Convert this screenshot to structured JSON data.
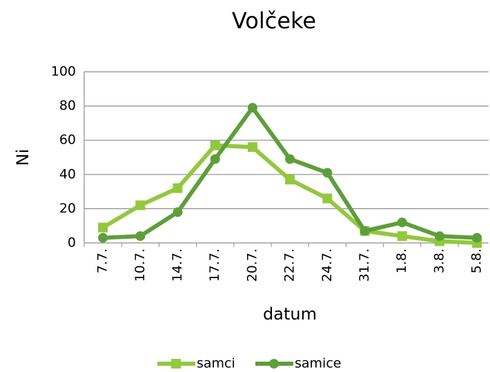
{
  "chart_data": {
    "type": "line",
    "title": "Volčeke",
    "x_label": "datum",
    "y_label": "Ni",
    "categories": [
      "7.7.",
      "10.7.",
      "14.7.",
      "17.7.",
      "20.7.",
      "22.7.",
      "24.7.",
      "31.7.",
      "1.8.",
      "3.8.",
      "5.8."
    ],
    "series": [
      {
        "name": "samci",
        "color": "#92c83e",
        "marker": "square",
        "values": [
          9,
          22,
          32,
          57,
          56,
          37,
          26,
          7,
          4,
          1,
          0
        ]
      },
      {
        "name": "samice",
        "color": "#5e9e3a",
        "marker": "circle",
        "values": [
          3,
          4,
          18,
          49,
          79,
          49,
          41,
          7,
          12,
          4,
          3
        ]
      }
    ],
    "ylim": [
      0,
      100
    ],
    "yticks": [
      0,
      20,
      40,
      60,
      80,
      100
    ],
    "grid": true,
    "legend": "bottom"
  }
}
